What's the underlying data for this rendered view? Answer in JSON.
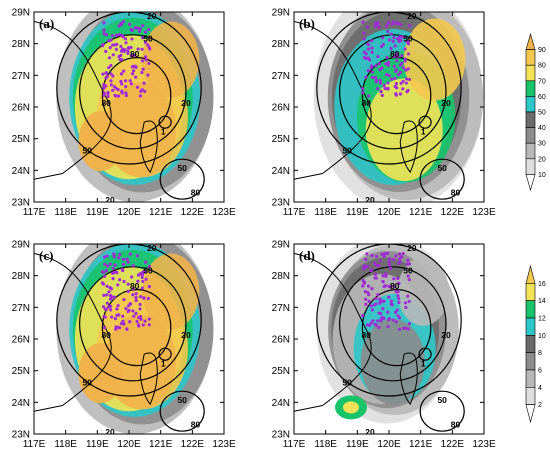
{
  "chart_data": [
    {
      "type": "heatmap",
      "panel_label": "(a)",
      "x_ticks": [
        "117E",
        "118E",
        "119E",
        "120E",
        "121E",
        "122E",
        "123E"
      ],
      "y_ticks": [
        "23N",
        "24N",
        "25N",
        "26N",
        "27N",
        "28N",
        "29N"
      ],
      "xlim": [
        117,
        123
      ],
      "ylim": [
        23,
        29
      ],
      "shading_scale": "main",
      "contour_labels": [
        "20",
        "50",
        "80",
        "80",
        "20",
        "1",
        "50",
        "50",
        "80",
        "20"
      ],
      "colorbar": null
    },
    {
      "type": "heatmap",
      "panel_label": "(b)",
      "x_ticks": [
        "117E",
        "118E",
        "119E",
        "120E",
        "121E",
        "122E",
        "123E"
      ],
      "y_ticks": [
        "23N",
        "24N",
        "25N",
        "26N",
        "27N",
        "28N",
        "29N"
      ],
      "xlim": [
        117,
        123
      ],
      "ylim": [
        23,
        29
      ],
      "shading_scale": "main",
      "contour_labels": [
        "20",
        "50",
        "80",
        "80",
        "20",
        "1",
        "50",
        "50",
        "80",
        "20"
      ],
      "colorbar": {
        "ticks": [
          "90",
          "80",
          "70",
          "60",
          "50",
          "40",
          "30",
          "20",
          "10"
        ],
        "colors": [
          "#f0b24a",
          "#f3c84e",
          "#f4e356",
          "#17c46a",
          "#2cc7c8",
          "#6b6b6b",
          "#8c8c8c",
          "#b8b8b8",
          "#dedede",
          "#ffffff"
        ]
      }
    },
    {
      "type": "heatmap",
      "panel_label": "(c)",
      "x_ticks": [
        "117E",
        "118E",
        "119E",
        "120E",
        "121E",
        "122E",
        "123E"
      ],
      "y_ticks": [
        "23N",
        "24N",
        "25N",
        "26N",
        "27N",
        "28N",
        "29N"
      ],
      "xlim": [
        117,
        123
      ],
      "ylim": [
        23,
        29
      ],
      "shading_scale": "secondary",
      "contour_labels": [
        "20",
        "50",
        "80",
        "80",
        "20",
        "1",
        "50",
        "50",
        "80",
        "20"
      ],
      "colorbar": null
    },
    {
      "type": "heatmap",
      "panel_label": "(d)",
      "x_ticks": [
        "117E",
        "118E",
        "119E",
        "120E",
        "121E",
        "122E",
        "123E"
      ],
      "y_ticks": [
        "23N",
        "24N",
        "25N",
        "26N",
        "27N",
        "28N",
        "29N"
      ],
      "xlim": [
        117,
        123
      ],
      "ylim": [
        23,
        29
      ],
      "shading_scale": "secondary",
      "contour_labels": [
        "20",
        "50",
        "80",
        "80",
        "20",
        "1",
        "50",
        "50",
        "80",
        "20"
      ],
      "colorbar": {
        "ticks": [
          "16",
          "14",
          "12",
          "10",
          "8",
          "6",
          "4",
          "2"
        ],
        "colors": [
          "#f3c84e",
          "#f4e356",
          "#17c46a",
          "#2cc7c8",
          "#6b6b6b",
          "#8c8c8c",
          "#b8b8b8",
          "#dedede",
          "#ffffff"
        ]
      }
    }
  ],
  "colors": {
    "scatter": "#a12ad8",
    "contour": "#000000",
    "coast": "#000000"
  }
}
